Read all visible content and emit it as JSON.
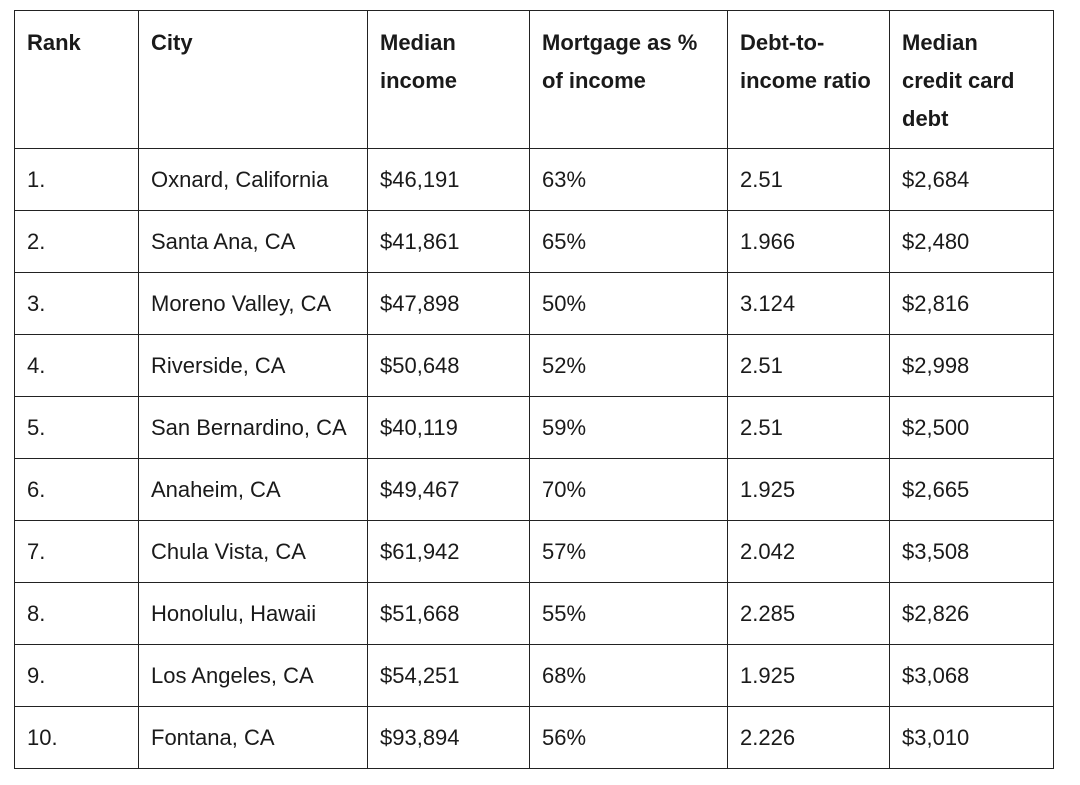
{
  "table": {
    "headers": {
      "rank": "Rank",
      "city": "City",
      "median_income": "Median income",
      "mortgage": "Mortgage as % of income",
      "dti": "Debt-to-income ratio",
      "cc_debt": "Median credit card debt"
    },
    "rows": [
      {
        "rank": "1.",
        "city": "Oxnard, California",
        "income": "$46,191",
        "mortgage": "63%",
        "dti": "2.51",
        "debt": "$2,684"
      },
      {
        "rank": "2.",
        "city": "Santa Ana, CA",
        "income": "$41,861",
        "mortgage": "65%",
        "dti": "1.966",
        "debt": "$2,480"
      },
      {
        "rank": "3.",
        "city": "Moreno Valley, CA",
        "income": "$47,898",
        "mortgage": "50%",
        "dti": "3.124",
        "debt": "$2,816"
      },
      {
        "rank": "4.",
        "city": "Riverside, CA",
        "income": "$50,648",
        "mortgage": "52%",
        "dti": "2.51",
        "debt": "$2,998"
      },
      {
        "rank": "5.",
        "city": "San Bernardino, CA",
        "income": "$40,119",
        "mortgage": "59%",
        "dti": "2.51",
        "debt": "$2,500"
      },
      {
        "rank": "6.",
        "city": "Anaheim, CA",
        "income": "$49,467",
        "mortgage": "70%",
        "dti": "1.925",
        "debt": "$2,665"
      },
      {
        "rank": "7.",
        "city": "Chula Vista, CA",
        "income": "$61,942",
        "mortgage": "57%",
        "dti": "2.042",
        "debt": "$3,508"
      },
      {
        "rank": "8.",
        "city": "Honolulu, Hawaii",
        "income": "$51,668",
        "mortgage": "55%",
        "dti": "2.285",
        "debt": "$2,826"
      },
      {
        "rank": "9.",
        "city": "Los Angeles, CA",
        "income": "$54,251",
        "mortgage": "68%",
        "dti": "1.925",
        "debt": "$3,068"
      },
      {
        "rank": "10.",
        "city": "Fontana, CA",
        "income": "$93,894",
        "mortgage": "56%",
        "dti": "2.226",
        "debt": "$3,010"
      }
    ]
  }
}
